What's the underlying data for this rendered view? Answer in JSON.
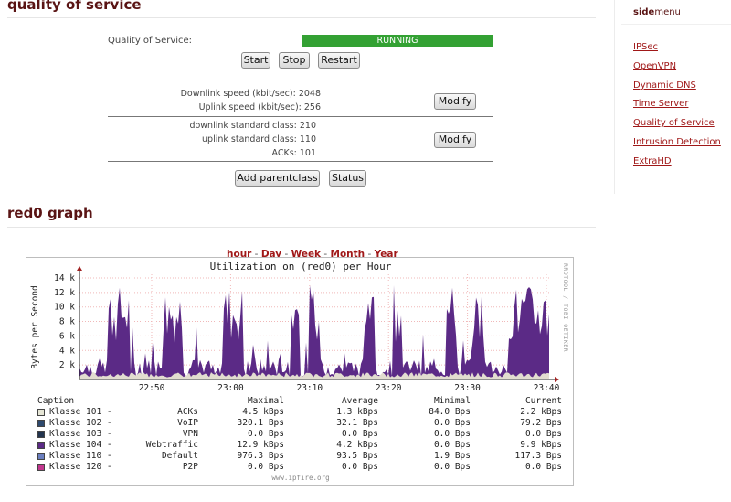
{
  "qos": {
    "heading": "quality of service",
    "status_label": "Quality of Service:",
    "status_value": "RUNNING",
    "status_color": "#33a133",
    "buttons": {
      "start": "Start",
      "stop": "Stop",
      "restart": "Restart",
      "modify": "Modify",
      "add_parentclass": "Add parentclass",
      "status": "Status"
    },
    "downlink_speed": "Downlink speed (kbit/sec): 2048",
    "uplink_speed": "Uplink speed (kbit/sec): 256",
    "downlink_class": "downlink standard class: 210",
    "uplink_class": "uplink standard class: 110",
    "acks": "ACKs: 101"
  },
  "sidemenu": {
    "title_bold": "side",
    "title_rest": "menu",
    "items": [
      "IPSec",
      "OpenVPN",
      "Dynamic DNS",
      "Time Server",
      "Quality of Service",
      "Intrusion Detection",
      "ExtraHD"
    ]
  },
  "graph": {
    "heading": "red0 graph",
    "periods": [
      "hour",
      "Day",
      "Week",
      "Month",
      "Year"
    ],
    "footer": "www.ipfire.org",
    "side_text": "RRDTOOL / TOBI OETIKER"
  },
  "chart_data": {
    "type": "area",
    "title": "Utilization on (red0) per Hour",
    "ylabel": "Bytes per Second",
    "xlabel": "",
    "y_ticks": [
      "2 k",
      "4 k",
      "6 k",
      "8 k",
      "10 k",
      "12 k",
      "14 k"
    ],
    "y_tick_values": [
      2000,
      4000,
      6000,
      8000,
      10000,
      12000,
      14000
    ],
    "ylim": [
      0,
      14500
    ],
    "x_ticks": [
      "22:50",
      "23:00",
      "23:10",
      "23:20",
      "23:30",
      "23:40"
    ],
    "grid": true,
    "colors": {
      "webtraffic": "#5b2a86",
      "default": "#e2ddd0"
    },
    "legend_header": [
      "Caption",
      "Maximal",
      "Average",
      "Minimal",
      "Current"
    ],
    "legend": [
      {
        "klass": "Klasse 101 -",
        "name": "ACKs",
        "max": "4.5 kBps",
        "avg": "1.3 kBps",
        "min": "84.0 Bps",
        "cur": "2.2 kBps",
        "color": "#e6e6d6"
      },
      {
        "klass": "Klasse 102 -",
        "name": "VoIP",
        "max": "320.1 Bps",
        "avg": "32.1 Bps",
        "min": "0.0 Bps",
        "cur": "79.2 Bps",
        "color": "#2e4a6e"
      },
      {
        "klass": "Klasse 103 -",
        "name": "VPN",
        "max": "0.0 Bps",
        "avg": "0.0 Bps",
        "min": "0.0 Bps",
        "cur": "0.0 Bps",
        "color": "#23354f"
      },
      {
        "klass": "Klasse 104 -",
        "name": "Webtraffic",
        "max": "12.9 kBps",
        "avg": "4.2 kBps",
        "min": "0.0 Bps",
        "cur": "9.9 kBps",
        "color": "#5b2a86"
      },
      {
        "klass": "Klasse 110 -",
        "name": "Default",
        "max": "976.3 Bps",
        "avg": "93.5 Bps",
        "min": "1.9 Bps",
        "cur": "117.3 Bps",
        "color": "#6b7fbf"
      },
      {
        "klass": "Klasse 120 -",
        "name": "P2P",
        "max": "0.0 Bps",
        "avg": "0.0 Bps",
        "min": "0.0 Bps",
        "cur": "0.0 Bps",
        "color": "#c2378f"
      }
    ]
  }
}
